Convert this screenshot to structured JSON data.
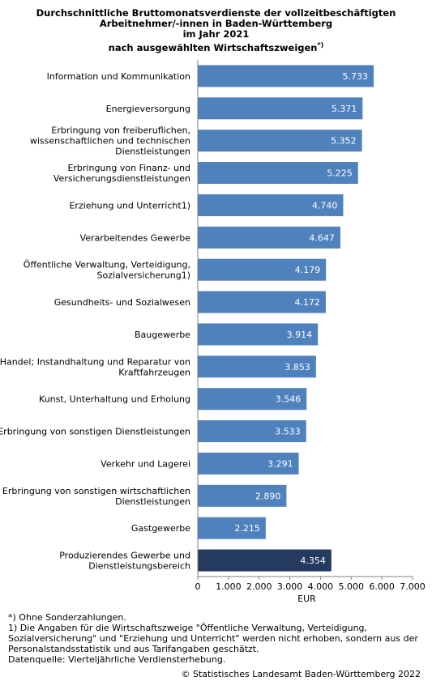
{
  "title": {
    "line1": "Durchschnittliche Bruttomonatsverdienste der vollzeitbeschäftigten",
    "line2": "Arbeitnehmer/-innen in Baden-Württemberg",
    "line3": "im Jahr 2021",
    "line4": "nach ausgewählten Wirtschaftszweigen",
    "line4_sup": "*)"
  },
  "chart_data": {
    "type": "bar",
    "orientation": "horizontal",
    "xlabel": "EUR",
    "xlim": [
      0,
      7000
    ],
    "xticks": [
      0,
      1000,
      2000,
      3000,
      4000,
      5000,
      6000,
      7000
    ],
    "xtick_labels": [
      "0",
      "1.000",
      "2.000",
      "3.000",
      "4.000",
      "5.000",
      "6.000",
      "7.000"
    ],
    "categories": [
      [
        "Information und Kommunikation"
      ],
      [
        "Energieversorgung"
      ],
      [
        "Erbringung von freiberuflichen,",
        "wissenschaftlichen und technischen",
        "Dienstleistungen"
      ],
      [
        "Erbringung von Finanz- und",
        "Versicherungsdienstleistungen"
      ],
      [
        "Erziehung und Unterricht1)"
      ],
      [
        "Verarbeitendes Gewerbe"
      ],
      [
        "Öffentliche Verwaltung, Verteidigung,",
        "Sozialversicherung1)"
      ],
      [
        "Gesundheits- und Sozialwesen"
      ],
      [
        "Baugewerbe"
      ],
      [
        "Handel; Instandhaltung und Reparatur von",
        "Kraftfahrzeugen"
      ],
      [
        "Kunst, Unterhaltung und Erholung"
      ],
      [
        "Erbringung von sonstigen Dienstleistungen"
      ],
      [
        "Verkehr und Lagerei"
      ],
      [
        "Erbringung von sonstigen wirtschaftlichen",
        "Dienstleistungen"
      ],
      [
        "Gastgewerbe"
      ],
      [
        "Produzierendes Gewerbe und",
        "Dienstleistungsbereich"
      ]
    ],
    "values": [
      5733,
      5371,
      5352,
      5225,
      4740,
      4647,
      4179,
      4172,
      3914,
      3853,
      3546,
      3533,
      3291,
      2890,
      2215,
      4354
    ],
    "value_labels": [
      "5.733",
      "5.371",
      "5.352",
      "5.225",
      "4.740",
      "4.647",
      "4.179",
      "4.172",
      "3.914",
      "3.853",
      "3.546",
      "3.533",
      "3.291",
      "2.890",
      "2.215",
      "4.354"
    ],
    "highlight_index": 15,
    "colors": {
      "bar": "#4f81bd",
      "highlight": "#243a5e",
      "label": "#ffffff",
      "axis": "#7f7f7f"
    },
    "grid": false
  },
  "notes": [
    "*) Ohne Sonderzahlungen.",
    "1) Die Angaben für die Wirtschaftszweige \"Öffentliche Verwaltung, Verteidigung,",
    "Sozialversicherung\" und \"Erziehung und Unterricht\" werden nicht erhoben, sondern aus der",
    "Personalstandsstatistik und aus Tarifangaben geschätzt.",
    "Datenquelle: Vierteljährliche Verdiensterhebung."
  ],
  "copyright": "© Statistisches Landesamt Baden-Württemberg 2022"
}
